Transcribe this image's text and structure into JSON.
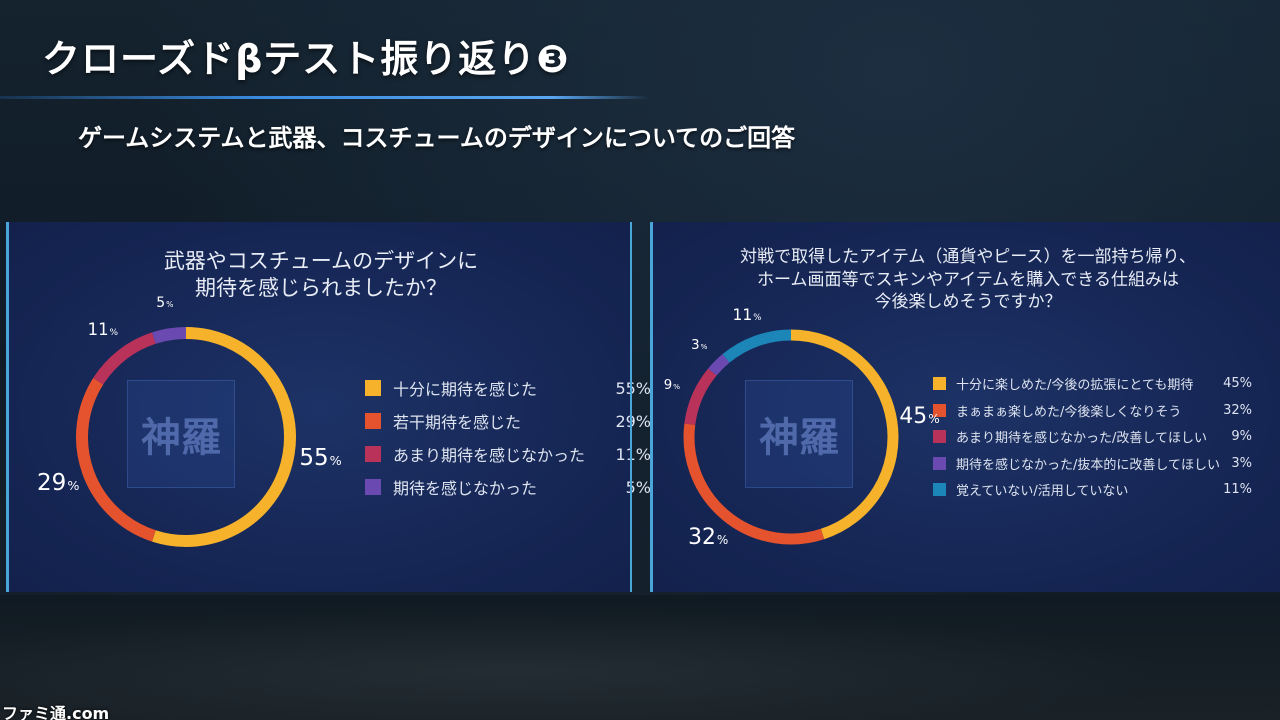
{
  "slide": {
    "title": "クローズドβテスト振り返り❸",
    "subtitle": "ゲームシステムと武器、コスチュームのデザインについてのご回答",
    "watermark": "ファミ通.com"
  },
  "emblem": {
    "glyph": "神羅"
  },
  "chart_data": [
    {
      "type": "pie",
      "style": "donut",
      "title": [
        "武器やコスチュームのデザインに",
        "期待を感じられましたか？"
      ],
      "categories": [
        "十分に期待を感じた",
        "若干期待を感じた",
        "あまり期待を感じなかった",
        "期待を感じなかった"
      ],
      "values": [
        55,
        29,
        11,
        5
      ],
      "value_labels": [
        "55%",
        "29%",
        "11%",
        "5%"
      ],
      "colors": [
        "#f5b22a",
        "#e4522e",
        "#b8325a",
        "#6a49b0"
      ],
      "legend": "right"
    },
    {
      "type": "pie",
      "style": "donut",
      "title": [
        "対戦で取得したアイテム（通貨やピース）を一部持ち帰り、",
        "ホーム画面等でスキンやアイテムを購入できる仕組みは",
        "今後楽しめそうですか？"
      ],
      "categories": [
        "十分に楽しめた/今後の拡張にとても期待",
        "まぁまぁ楽しめた/今後楽しくなりそう",
        "あまり期待を感じなかった/改善してほしい",
        "期待を感じなかった/抜本的に改善してほしい",
        "覚えていない/活用していない"
      ],
      "values": [
        45,
        32,
        9,
        3,
        11
      ],
      "value_labels": [
        "45%",
        "32%",
        "9%",
        "3%",
        "11%"
      ],
      "colors": [
        "#f5b22a",
        "#e4522e",
        "#b8325a",
        "#6a49b0",
        "#1d86b8"
      ],
      "legend": "right"
    }
  ]
}
